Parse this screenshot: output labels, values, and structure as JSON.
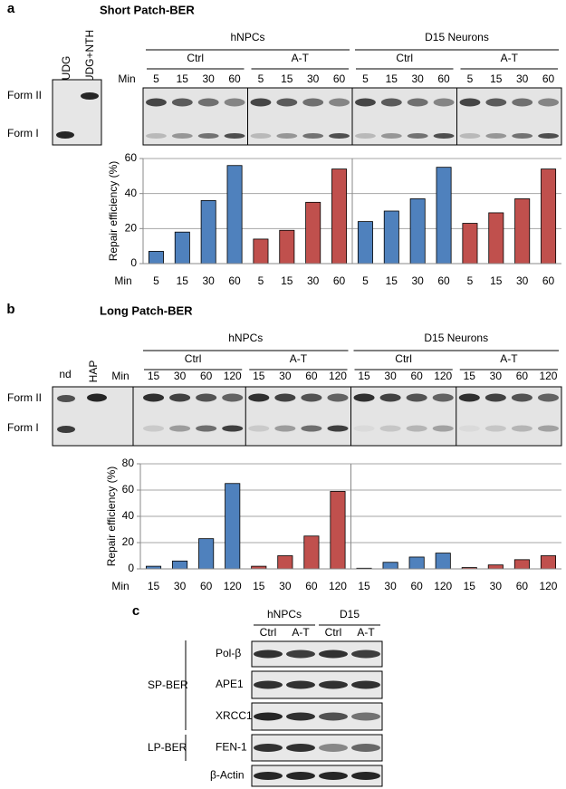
{
  "panel_a": {
    "label": "a",
    "title": "Short Patch-BER",
    "gel_lanes": [
      "UDG",
      "UDG+NTH"
    ],
    "forms": [
      "Form II",
      "Form I"
    ],
    "groups": [
      "hNPCs",
      "D15 Neurons"
    ],
    "subgroups": [
      "Ctrl",
      "A-T",
      "Ctrl",
      "A-T"
    ],
    "min_label": "Min",
    "gel_times": [
      "5",
      "15",
      "30",
      "60",
      "5",
      "15",
      "30",
      "60",
      "5",
      "15",
      "30",
      "60",
      "5",
      "15",
      "30",
      "60"
    ]
  },
  "panel_b": {
    "label": "b",
    "title": "Long Patch-BER",
    "gel_lanes": [
      "nd",
      "HAP"
    ],
    "forms": [
      "Form II",
      "Form I"
    ],
    "groups": [
      "hNPCs",
      "D15 Neurons"
    ],
    "subgroups": [
      "Ctrl",
      "A-T",
      "Ctrl",
      "A-T"
    ],
    "min_label": "Min",
    "gel_times": [
      "15",
      "30",
      "60",
      "120",
      "15",
      "30",
      "60",
      "120",
      "15",
      "30",
      "60",
      "120",
      "15",
      "30",
      "60",
      "120"
    ]
  },
  "panel_c": {
    "label": "c",
    "groups": [
      "hNPCs",
      "D15"
    ],
    "subgroups": [
      "Ctrl",
      "A-T",
      "Ctrl",
      "A-T"
    ],
    "pathways": [
      "SP-BER",
      "LP-BER"
    ],
    "proteins": [
      "Pol-β",
      "APE1",
      "XRCC1",
      "FEN-1",
      "β-Actin"
    ]
  },
  "chart_data": [
    {
      "type": "bar",
      "y_label": "Repair efficiency (%)",
      "x_label": "Min",
      "categories": [
        "5",
        "15",
        "30",
        "60",
        "5",
        "15",
        "30",
        "60",
        "5",
        "15",
        "30",
        "60",
        "5",
        "15",
        "30",
        "60"
      ],
      "values": [
        7,
        18,
        36,
        56,
        14,
        19,
        35,
        54,
        24,
        30,
        37,
        55,
        23,
        29,
        37,
        54
      ],
      "colors": [
        "#4f81bd",
        "#4f81bd",
        "#4f81bd",
        "#4f81bd",
        "#c0504d",
        "#c0504d",
        "#c0504d",
        "#c0504d",
        "#4f81bd",
        "#4f81bd",
        "#4f81bd",
        "#4f81bd",
        "#c0504d",
        "#c0504d",
        "#c0504d",
        "#c0504d"
      ],
      "ylim": [
        0,
        60
      ],
      "yticks": [
        0,
        20,
        40,
        60
      ],
      "grid": true
    },
    {
      "type": "bar",
      "y_label": "Repair efficiency (%)",
      "x_label": "Min",
      "categories": [
        "15",
        "30",
        "60",
        "120",
        "15",
        "30",
        "60",
        "120",
        "15",
        "30",
        "60",
        "120",
        "15",
        "30",
        "60",
        "120"
      ],
      "values": [
        2,
        6,
        23,
        65,
        2,
        10,
        25,
        59,
        0.5,
        5,
        9,
        12,
        1,
        3,
        7,
        10
      ],
      "colors": [
        "#4f81bd",
        "#4f81bd",
        "#4f81bd",
        "#4f81bd",
        "#c0504d",
        "#c0504d",
        "#c0504d",
        "#c0504d",
        "#4f81bd",
        "#4f81bd",
        "#4f81bd",
        "#4f81bd",
        "#c0504d",
        "#c0504d",
        "#c0504d",
        "#c0504d"
      ],
      "ylim": [
        0,
        80
      ],
      "yticks": [
        0,
        20,
        40,
        60,
        80
      ],
      "grid": true
    }
  ]
}
